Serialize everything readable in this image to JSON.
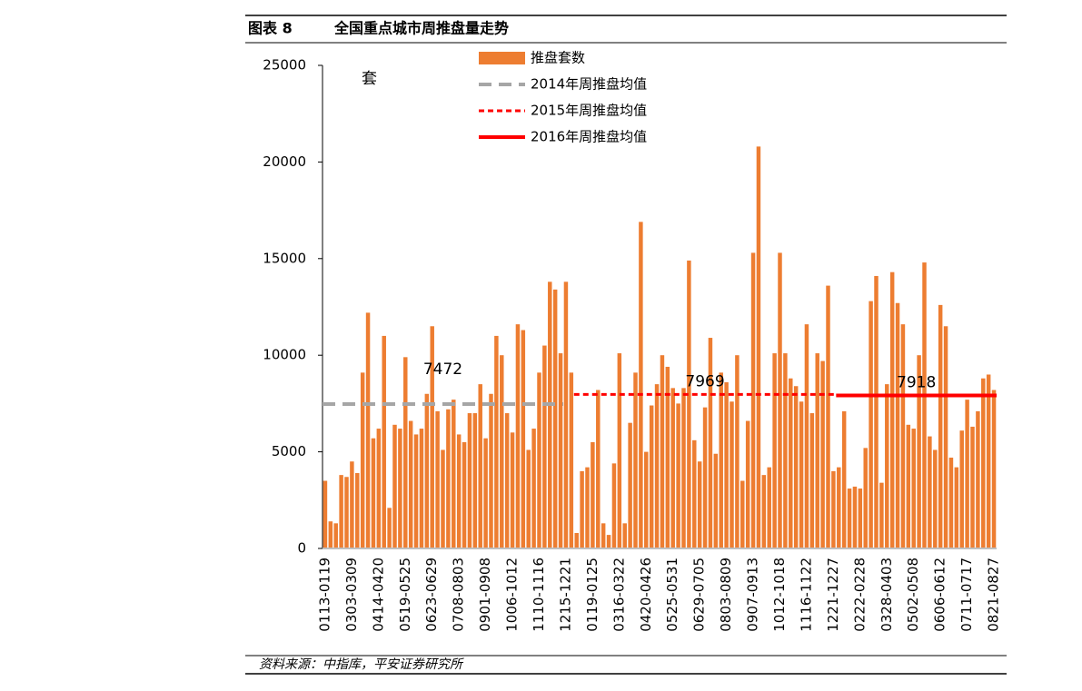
{
  "chart_data": {
    "type": "bar",
    "figure_label": "图表 8",
    "title": "全国重点城市周推盘量走势",
    "y_unit": "套",
    "source": "资料来源：中指库，平安证券研究所",
    "categories": [
      "0113-0119",
      null,
      null,
      null,
      null,
      "0303-0309",
      null,
      null,
      null,
      null,
      "0414-0420",
      null,
      null,
      null,
      null,
      "0519-0525",
      null,
      null,
      null,
      null,
      "0623-0629",
      null,
      null,
      null,
      null,
      "0708-0803",
      null,
      null,
      null,
      null,
      "0901-0908",
      null,
      null,
      null,
      null,
      "1006-1012",
      null,
      null,
      null,
      null,
      "1110-1116",
      null,
      null,
      null,
      null,
      "1215-1221",
      null,
      null,
      null,
      null,
      "0119-0125",
      null,
      null,
      null,
      null,
      "0316-0322",
      null,
      null,
      null,
      null,
      "0420-0426",
      null,
      null,
      null,
      null,
      "0525-0531",
      null,
      null,
      null,
      null,
      "0629-0705",
      null,
      null,
      null,
      null,
      "0803-0809",
      null,
      null,
      null,
      null,
      "0907-0913",
      null,
      null,
      null,
      null,
      "1012-1018",
      null,
      null,
      null,
      null,
      "1116-1122",
      null,
      null,
      null,
      null,
      "1221-1227",
      null,
      null,
      null,
      null,
      "0222-0228",
      null,
      null,
      null,
      null,
      "0328-0403",
      null,
      null,
      null,
      null,
      "0502-0508",
      null,
      null,
      null,
      null,
      "0606-0612",
      null,
      null,
      null,
      null,
      "0711-0717",
      null,
      null,
      null,
      null,
      "0821-0827"
    ],
    "series": [
      {
        "name": "推盘套数",
        "color": "#ed7d31",
        "values": [
          3500,
          1400,
          1300,
          3800,
          3700,
          4500,
          3900,
          9100,
          12200,
          5700,
          6200,
          11000,
          2100,
          6400,
          6200,
          9900,
          6600,
          5900,
          6200,
          8000,
          11500,
          7100,
          5100,
          7200,
          7700,
          5900,
          5500,
          7000,
          7000,
          8500,
          5700,
          8000,
          11000,
          10000,
          7000,
          6000,
          11600,
          11300,
          5100,
          6200,
          9100,
          10500,
          13800,
          13400,
          10100,
          13800,
          9100,
          800,
          4000,
          4200,
          5500,
          8200,
          1300,
          700,
          4400,
          10100,
          1300,
          6500,
          9100,
          16900,
          5000,
          7400,
          8500,
          10000,
          9400,
          8300,
          7500,
          8300,
          14900,
          5600,
          4500,
          7300,
          10900,
          4900,
          9100,
          8600,
          7600,
          10000,
          3500,
          6600,
          15300,
          20800,
          3800,
          4200,
          10100,
          15300,
          10100,
          8800,
          8400,
          7600,
          11600,
          7000,
          10100,
          9700,
          13600,
          4000,
          4200,
          7100,
          3100,
          3200,
          3100,
          5200,
          12800,
          14100,
          3400,
          8500,
          14300,
          12700,
          11600,
          6400,
          6200,
          10000,
          14800,
          5800,
          5100,
          12600,
          11500,
          4700,
          4200,
          6100,
          7700,
          6300,
          7100,
          8800,
          9000,
          8200
        ]
      }
    ],
    "reference_lines": [
      {
        "name": "2014年周推盘均值",
        "value": 7472,
        "start_index": 0,
        "end_index": 44,
        "color": "#a6a6a6",
        "style": "dashed"
      },
      {
        "name": "2015年周推盘均值",
        "value": 7969,
        "start_index": 47,
        "end_index": 95,
        "color": "#ff0000",
        "style": "dotted"
      },
      {
        "name": "2016年周推盘均值",
        "value": 7918,
        "start_index": 96,
        "end_index": 125,
        "color": "#ff0000",
        "style": "solid"
      }
    ],
    "ylim": [
      0,
      25000
    ],
    "yticks": [
      0,
      5000,
      10000,
      15000,
      20000,
      25000
    ]
  }
}
